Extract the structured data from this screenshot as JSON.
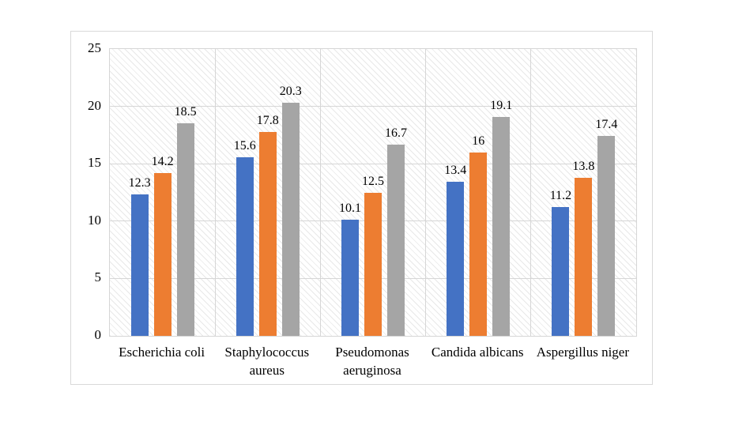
{
  "page": {
    "background": "#ffffff"
  },
  "chart_data": {
    "type": "bar",
    "title": "",
    "xlabel": "",
    "ylabel": "",
    "categories": [
      "Escherichia coli",
      "Staphylococcus aureus",
      "Pseudomonas aeruginosa",
      "Candida albicans",
      "Aspergillus niger"
    ],
    "series": [
      {
        "name": "blue-series",
        "color": "#4472C4",
        "values": [
          12.3,
          15.6,
          10.1,
          13.4,
          11.2
        ]
      },
      {
        "name": "orange-series",
        "color": "#ED7D31",
        "values": [
          14.2,
          17.8,
          12.5,
          16,
          13.8
        ]
      },
      {
        "name": "gray-series",
        "color": "#A5A5A5",
        "values": [
          18.5,
          20.3,
          16.7,
          19.1,
          17.4
        ]
      }
    ],
    "ylim": [
      0,
      25
    ],
    "yticks": [
      0,
      5,
      10,
      15,
      20,
      25
    ],
    "grid": true,
    "category_dividers": true,
    "data_labels": true,
    "legend_position": "none",
    "plot_background": "diagonal-hatch",
    "colors": {
      "grid": "#d6d6d6",
      "plot_border": "#d6d6d6",
      "hatch_line": "#e8e8e8",
      "hatch_background": "#ffffff",
      "frame_border": "#d9d9d9",
      "text": "#000000"
    }
  }
}
